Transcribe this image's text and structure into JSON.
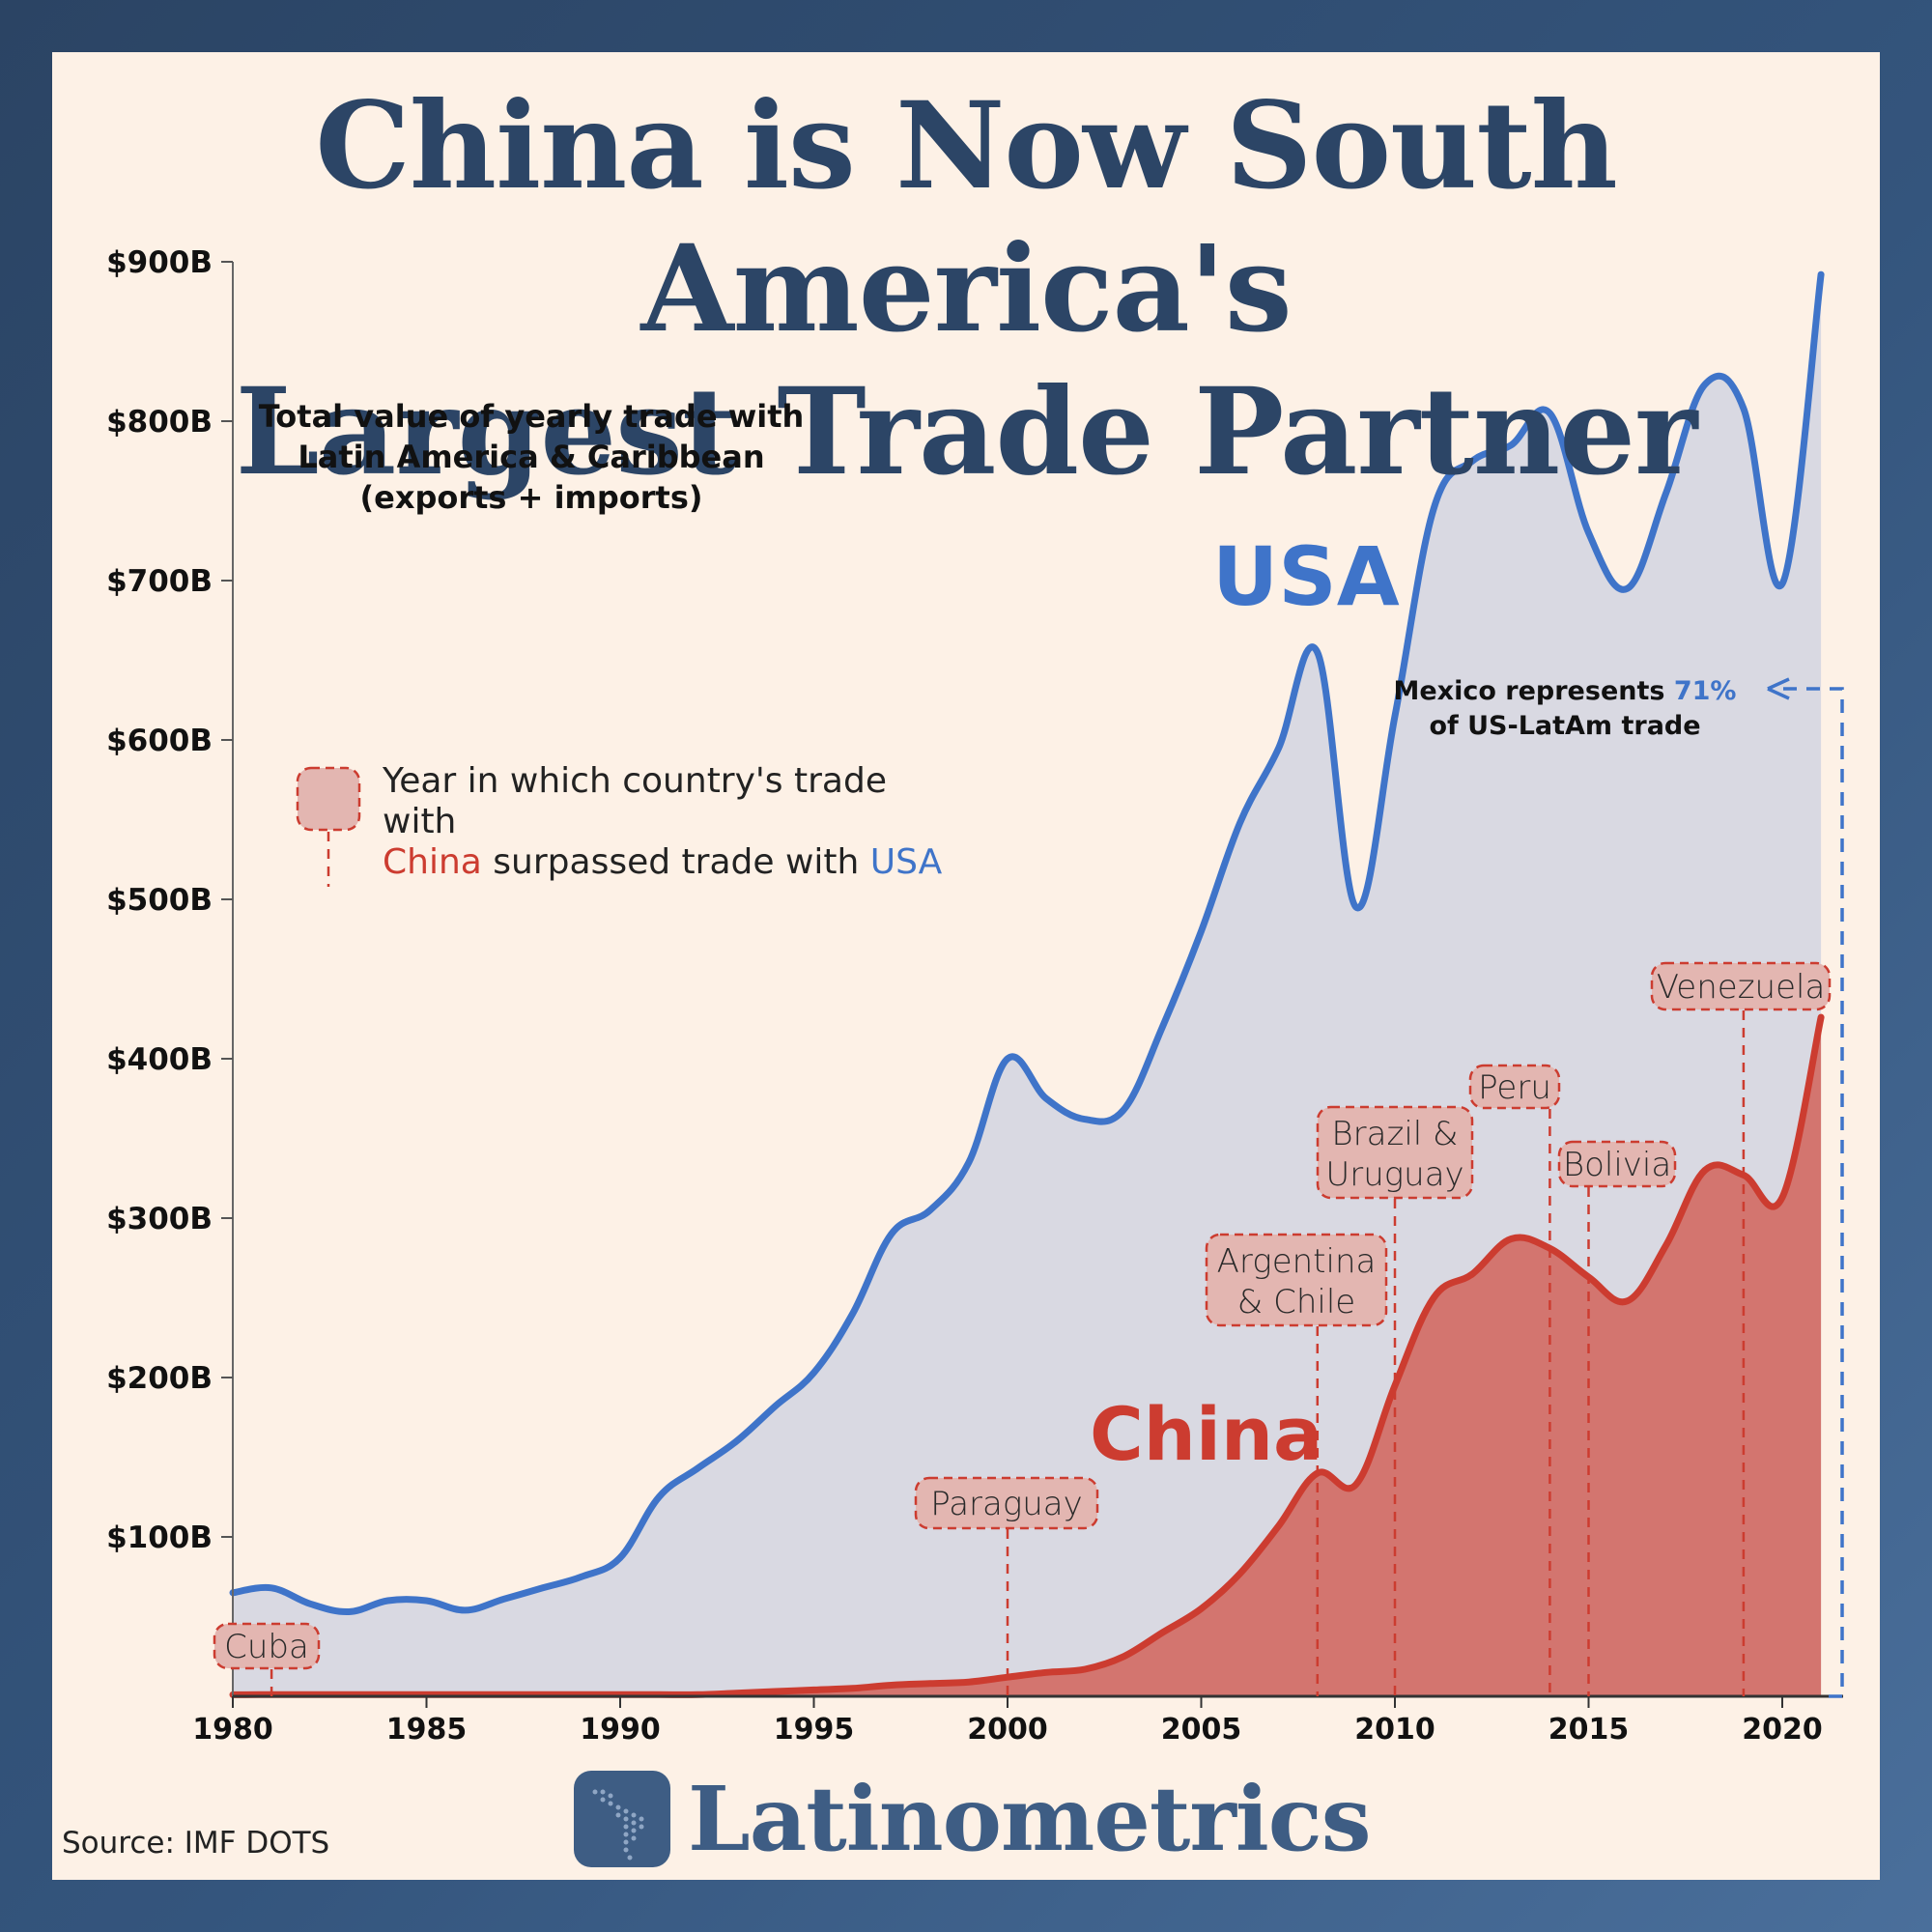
{
  "title": {
    "line1": "China is Now South America's",
    "line2": "Largest Trade Partner"
  },
  "subtitle": {
    "line1": "Total value of yearly trade with",
    "line2": "Latin America & Caribbean",
    "line3": "(exports + imports)"
  },
  "legend": {
    "text_prefix": "Year in which country's trade with",
    "china": "China",
    "text_mid": "surpassed trade with",
    "usa": "USA"
  },
  "series_labels": {
    "usa": "USA",
    "china": "China"
  },
  "annotation": {
    "text_prefix": "Mexico represents",
    "pct": "71%",
    "text_suffix": "of US-LatAm trade"
  },
  "source": "Source: IMF DOTS",
  "brand": "Latinometrics",
  "colors": {
    "usa": "#3f74c9",
    "china": "#cc3c30",
    "usa_fill": "#d9d9e2",
    "china_fill": "#d3756f",
    "title": "#2c4566"
  },
  "chart_data": {
    "type": "area",
    "title": "China is Now South America's Largest Trade Partner",
    "ylabel": "",
    "xlabel": "",
    "ylim": [
      0,
      900
    ],
    "xlim": [
      1980,
      2021
    ],
    "y_ticks": [
      "$100B",
      "$200B",
      "$300B",
      "$400B",
      "$500B",
      "$600B",
      "$700B",
      "$800B",
      "$900B"
    ],
    "y_tick_values": [
      100,
      200,
      300,
      400,
      500,
      600,
      700,
      800,
      900
    ],
    "x_ticks": [
      "1980",
      "1985",
      "1990",
      "1995",
      "2000",
      "2005",
      "2010",
      "2015",
      "2020"
    ],
    "x_tick_values": [
      1980,
      1985,
      1990,
      1995,
      2000,
      2005,
      2010,
      2015,
      2020
    ],
    "x": [
      1980,
      1981,
      1982,
      1983,
      1984,
      1985,
      1986,
      1987,
      1988,
      1989,
      1990,
      1991,
      1992,
      1993,
      1994,
      1995,
      1996,
      1997,
      1998,
      1999,
      2000,
      2001,
      2002,
      2003,
      2004,
      2005,
      2006,
      2007,
      2008,
      2009,
      2010,
      2011,
      2012,
      2013,
      2014,
      2015,
      2016,
      2017,
      2018,
      2019,
      2020,
      2021
    ],
    "series": [
      {
        "name": "USA",
        "values": [
          65,
          68,
          58,
          53,
          60,
          60,
          54,
          61,
          68,
          75,
          87,
          125,
          143,
          160,
          182,
          203,
          240,
          290,
          305,
          335,
          400,
          375,
          362,
          368,
          420,
          480,
          548,
          595,
          655,
          495,
          615,
          745,
          775,
          785,
          805,
          730,
          695,
          755,
          823,
          808,
          698,
          892
        ]
      },
      {
        "name": "China",
        "values": [
          1,
          1,
          1,
          1,
          1,
          1,
          1,
          1,
          1,
          1,
          1,
          1,
          1,
          2,
          3,
          4,
          5,
          7,
          8,
          9,
          12,
          15,
          17,
          25,
          40,
          55,
          77,
          107,
          140,
          133,
          195,
          250,
          265,
          287,
          281,
          263,
          248,
          283,
          330,
          327,
          313,
          426
        ]
      }
    ],
    "annotations": [
      {
        "label": "Cuba",
        "year": 1981
      },
      {
        "label": "Paraguay",
        "year": 2000
      },
      {
        "label": "Argentina & Chile",
        "year": 2008
      },
      {
        "label": "Brazil & Uruguay",
        "year": 2010
      },
      {
        "label": "Peru",
        "year": 2014
      },
      {
        "label": "Bolivia",
        "year": 2015
      },
      {
        "label": "Venezuela",
        "year": 2019
      }
    ],
    "grid": false,
    "legend": "left"
  }
}
